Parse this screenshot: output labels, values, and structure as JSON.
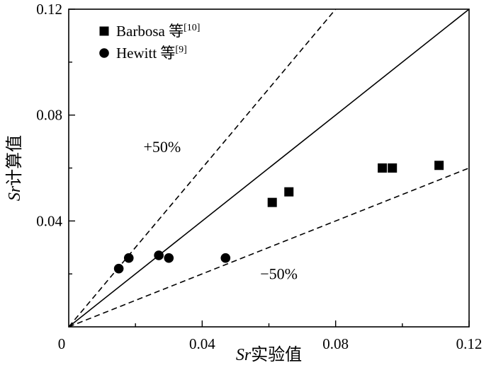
{
  "colors": {
    "foreground": "#000000",
    "background": "#ffffff"
  },
  "chart_data": {
    "type": "scatter",
    "title": "",
    "xlabel": "Sr实验值",
    "ylabel": "Sr计算值",
    "xlabel_italic_part": "Sr",
    "xlabel_plain_part": "实验值",
    "ylabel_italic_part": "Sr",
    "ylabel_plain_part": "计算值",
    "xlim": [
      0,
      0.12
    ],
    "ylim": [
      0,
      0.12
    ],
    "xticks": [
      0,
      0.04,
      0.08,
      0.12
    ],
    "yticks": [
      0,
      0.04,
      0.08,
      0.12
    ],
    "minor_tick_step": 0.02,
    "grid": false,
    "legend_position": "top-left",
    "series": [
      {
        "name": "Barbosa 等",
        "sup": "[10]",
        "marker": "square",
        "color": "#000000",
        "points": [
          [
            0.061,
            0.047
          ],
          [
            0.066,
            0.051
          ],
          [
            0.094,
            0.06
          ],
          [
            0.097,
            0.06
          ],
          [
            0.111,
            0.061
          ]
        ]
      },
      {
        "name": "Hewitt 等",
        "sup": "[9]",
        "marker": "circle",
        "color": "#000000",
        "points": [
          [
            0.015,
            0.022
          ],
          [
            0.018,
            0.026
          ],
          [
            0.027,
            0.027
          ],
          [
            0.03,
            0.026
          ],
          [
            0.047,
            0.026
          ]
        ]
      }
    ],
    "reference_lines": [
      {
        "name": "parity-line",
        "slope": 1.0,
        "style": "solid"
      },
      {
        "name": "plus-50-line",
        "slope": 1.5,
        "style": "dashed"
      },
      {
        "name": "minus-50-line",
        "slope": 0.5,
        "style": "dashed"
      }
    ],
    "annotations": [
      {
        "name": "plus-50-label",
        "text": "+50%",
        "x": 0.028,
        "y": 0.066
      },
      {
        "name": "minus-50-label",
        "text": "−50%",
        "x": 0.063,
        "y": 0.018
      }
    ]
  }
}
